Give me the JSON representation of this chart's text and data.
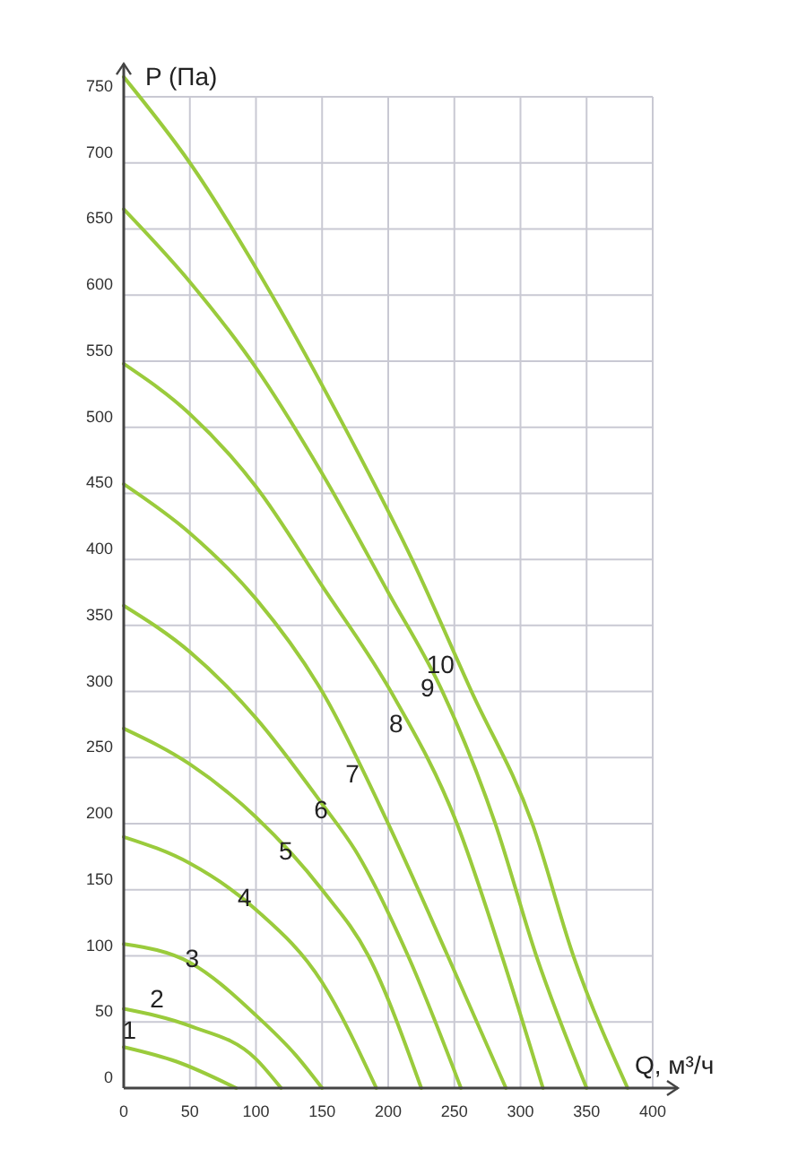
{
  "chart_data": {
    "type": "line",
    "xlabel": "Q, м³/ч",
    "ylabel": "P (Па)",
    "xlim": [
      0,
      400
    ],
    "ylim": [
      0,
      775
    ],
    "xticks": [
      0,
      50,
      100,
      150,
      200,
      250,
      300,
      350,
      400
    ],
    "yticks": [
      0,
      50,
      100,
      150,
      200,
      250,
      300,
      350,
      400,
      450,
      500,
      550,
      600,
      650,
      700,
      750
    ],
    "grid": true,
    "marker": "none",
    "line_style": "solid",
    "series": [
      {
        "name": "1",
        "color": "#9acb3c",
        "x": [
          0,
          40,
          85
        ],
        "values": [
          31,
          20,
          0
        ]
      },
      {
        "name": "2",
        "color": "#9acb3c",
        "x": [
          0,
          50,
          100,
          119
        ],
        "values": [
          60,
          47,
          22,
          0
        ]
      },
      {
        "name": "3",
        "color": "#9acb3c",
        "x": [
          0,
          50,
          100,
          130,
          150
        ],
        "values": [
          109,
          95,
          55,
          25,
          0
        ]
      },
      {
        "name": "4",
        "color": "#9acb3c",
        "x": [
          0,
          50,
          100,
          150,
          191
        ],
        "values": [
          190,
          170,
          135,
          80,
          0
        ]
      },
      {
        "name": "5",
        "color": "#9acb3c",
        "x": [
          0,
          50,
          100,
          150,
          185,
          225
        ],
        "values": [
          272,
          245,
          205,
          150,
          100,
          0
        ]
      },
      {
        "name": "6",
        "color": "#9acb3c",
        "x": [
          0,
          50,
          100,
          150,
          175,
          215,
          255
        ],
        "values": [
          365,
          330,
          280,
          215,
          180,
          100,
          0
        ]
      },
      {
        "name": "7",
        "color": "#9acb3c",
        "x": [
          0,
          50,
          100,
          150,
          200,
          245,
          289
        ],
        "values": [
          457,
          420,
          370,
          300,
          200,
          100,
          0
        ]
      },
      {
        "name": "8",
        "color": "#9acb3c",
        "x": [
          0,
          50,
          100,
          150,
          202,
          252,
          286,
          317
        ],
        "values": [
          548,
          510,
          455,
          380,
          300,
          200,
          100,
          0
        ]
      },
      {
        "name": "9",
        "color": "#9acb3c",
        "x": [
          0,
          50,
          100,
          150,
          200,
          241,
          281,
          312,
          350
        ],
        "values": [
          665,
          610,
          545,
          465,
          375,
          300,
          200,
          100,
          0
        ]
      },
      {
        "name": "10",
        "color": "#9acb3c",
        "x": [
          0,
          50,
          112,
          167,
          218,
          263,
          309,
          340,
          381
        ],
        "values": [
          765,
          700,
          600,
          500,
          400,
          300,
          200,
          100,
          0
        ]
      }
    ]
  }
}
